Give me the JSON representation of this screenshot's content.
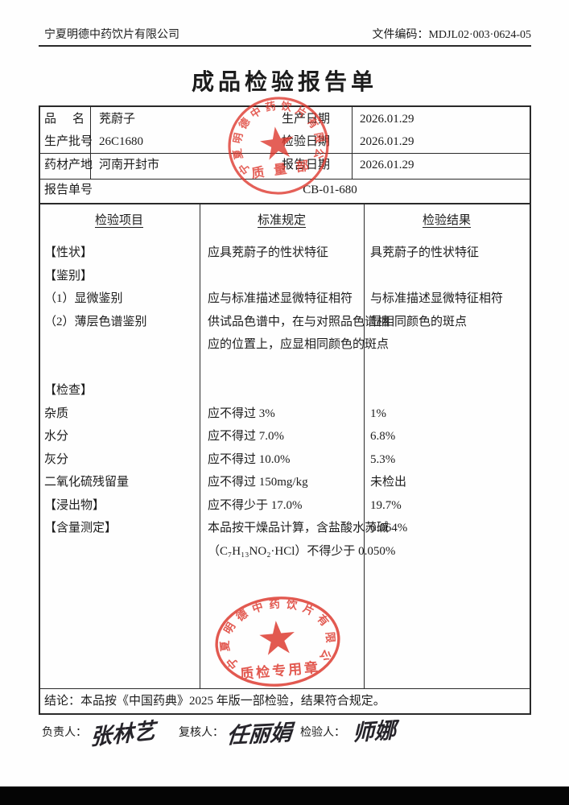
{
  "header": {
    "company": "宁夏明德中药饮片有限公司",
    "doc_code": "文件编码：MDJL02·003·0624-05"
  },
  "title": "成品检验报告单",
  "info": {
    "product_label": "品名",
    "product": "茺蔚子",
    "batch_label": "生产批号",
    "batch": "26C1680",
    "origin_label": "药材产地",
    "origin": "河南开封市",
    "prod_date_label": "生产日期",
    "prod_date": "2026.01.29",
    "test_date_label": "检验日期",
    "test_date": "2026.01.29",
    "report_date_label": "报告日期",
    "report_date": "2026.01.29",
    "report_no_label": "报告单号",
    "report_no": "CB-01-680"
  },
  "items_table": {
    "headers": [
      "检验项目",
      "标准规定",
      "检验结果"
    ],
    "rows": [
      {
        "item": "【性状】",
        "standard": "应具茺蔚子的性状特征",
        "result": "具茺蔚子的性状特征"
      },
      {
        "item": "【鉴别】",
        "standard": "",
        "result": ""
      },
      {
        "item": "（1）显微鉴别",
        "standard": "应与标准描述显微特征相符",
        "result": "与标准描述显微特征相符"
      },
      {
        "item": "（2）薄层色谱鉴别",
        "standard": "供试品色谱中，在与对照品色谱相\n应的位置上，应显相同颜色的斑点",
        "result": "显相同颜色的斑点"
      },
      {
        "item": "",
        "standard": "",
        "result": ""
      },
      {
        "item": "【检查】",
        "standard": "",
        "result": ""
      },
      {
        "item": "杂质",
        "standard": "应不得过 3%",
        "result": "1%"
      },
      {
        "item": "水分",
        "standard": "应不得过 7.0%",
        "result": "6.8%"
      },
      {
        "item": "灰分",
        "standard": "应不得过 10.0%",
        "result": "5.3%"
      },
      {
        "item": "二氧化硫残留量",
        "standard": "应不得过 150mg/kg",
        "result": "未检出"
      },
      {
        "item": "【浸出物】",
        "standard": "应不得少于 17.0%",
        "result": "19.7%"
      },
      {
        "item": "【含量测定】",
        "standard": "本品按干燥品计算，含盐酸水苏碱\n（C₇H₁₃NO₂·HCl）不得少于 0.050%",
        "result": "0.064%"
      }
    ]
  },
  "conclusion": "结论：本品按《中国药典》2025 年版一部检验，结果符合规定。",
  "signatures": {
    "resp_label": "负责人：",
    "resp_name": "张林艺",
    "review_label": "复核人：",
    "review_name": "任丽娟",
    "test_label": "检验人：",
    "test_name": "师娜"
  },
  "stamps": {
    "company_ring": "宁夏明德中药饮片有限公司",
    "dept": "质 量 部",
    "qc": "质检专用章",
    "color": "#dd352a"
  }
}
